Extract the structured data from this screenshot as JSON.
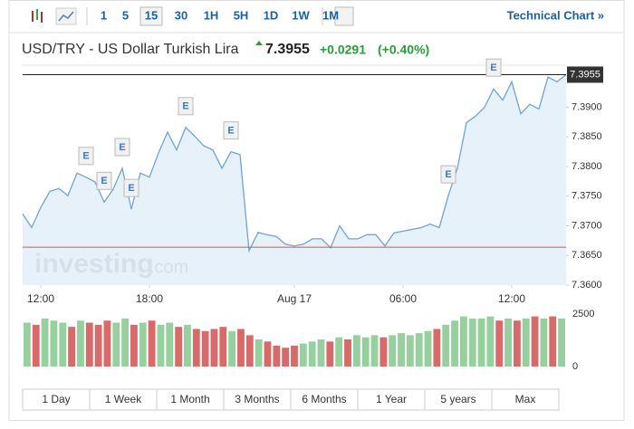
{
  "toolbar": {
    "intervals": [
      "1",
      "5",
      "15",
      "30",
      "1H",
      "5H",
      "1D",
      "1W",
      "1M"
    ],
    "selected_interval": 2,
    "link": "Technical Chart »"
  },
  "header": {
    "title": "USD/TRY - US Dollar Turkish Lira",
    "price": 7.3955,
    "change": "+0.0291",
    "change_pct": "(+0.40%)"
  },
  "watermark": [
    "investing",
    ".com"
  ],
  "chart_data": {
    "type": "line",
    "color": "#6fa3d6",
    "fill": "#e3eef8",
    "values": [
      7.372,
      7.3697,
      7.3731,
      7.3758,
      7.3763,
      7.3751,
      7.3789,
      7.3782,
      7.3774,
      7.374,
      7.3762,
      7.3797,
      7.3728,
      7.3789,
      7.3782,
      7.3823,
      7.3858,
      7.3828,
      7.3866,
      7.3851,
      7.3835,
      7.3828,
      7.3797,
      7.3825,
      7.382,
      7.3658,
      7.3689,
      7.3685,
      7.3682,
      7.3669,
      7.3666,
      7.3669,
      7.3678,
      7.3678,
      7.3663,
      7.37,
      7.3678,
      7.3678,
      7.3685,
      7.3685,
      7.3666,
      7.3688,
      7.3691,
      7.3694,
      7.3697,
      7.3703,
      7.3697,
      7.3751,
      7.3797,
      7.3874,
      7.3885,
      7.39,
      7.3931,
      7.3912,
      7.3943,
      7.3889,
      7.3905,
      7.3897,
      7.3951,
      7.3943,
      7.3955
    ],
    "xlim": [
      0,
      60
    ],
    "xticks": [
      {
        "value": 2,
        "label": "12:00"
      },
      {
        "value": 14,
        "label": "18:00"
      },
      {
        "value": 30,
        "label": "Aug 17"
      },
      {
        "value": 42,
        "label": "06:00"
      },
      {
        "value": 54,
        "label": "12:00"
      }
    ],
    "ylim": [
      7.36,
      7.3971
    ],
    "yticks": [
      {
        "value": 7.36,
        "label": "7.3600"
      },
      {
        "value": 7.365,
        "label": "7.3650"
      },
      {
        "value": 7.37,
        "label": "7.3700"
      },
      {
        "value": 7.375,
        "label": "7.3750"
      },
      {
        "value": 7.38,
        "label": "7.3800"
      },
      {
        "value": 7.385,
        "label": "7.3850"
      },
      {
        "value": 7.39,
        "label": "7.3900"
      }
    ],
    "prev_close": 7.3664,
    "prev_close_color": "#d9534f",
    "events": [
      {
        "x": 7,
        "label": "E"
      },
      {
        "x": 9,
        "label": "E"
      },
      {
        "x": 11,
        "label": "E"
      },
      {
        "x": 12,
        "label": "E"
      },
      {
        "x": 18,
        "label": "E"
      },
      {
        "x": 23,
        "label": "E"
      },
      {
        "x": 47,
        "label": "E"
      },
      {
        "x": 52,
        "label": "E"
      }
    ],
    "volume": [
      2100,
      2000,
      2300,
      2200,
      2100,
      1900,
      2200,
      2100,
      2000,
      2200,
      2100,
      2300,
      2000,
      2100,
      2200,
      2000,
      2100,
      1900,
      2000,
      1800,
      1700,
      1800,
      1900,
      1700,
      1800,
      1500,
      1300,
      1200,
      1000,
      900,
      1000,
      1100,
      1200,
      1300,
      1200,
      1400,
      1300,
      1500,
      1400,
      1500,
      1400,
      1500,
      1600,
      1500,
      1600,
      1700,
      1800,
      2000,
      2200,
      2400,
      2300,
      2300,
      2400,
      2200,
      2300,
      2200,
      2300,
      2400,
      2300,
      2400,
      2300
    ],
    "volume_colors": {
      "up": "#98cf9e",
      "down": "#d86a6a"
    },
    "y2lim": [
      0,
      2600
    ],
    "y2ticks": [
      0,
      2500
    ]
  },
  "ranges": [
    "1 Day",
    "1 Week",
    "1 Month",
    "3 Months",
    "6 Months",
    "1 Year",
    "5 years",
    "Max"
  ]
}
